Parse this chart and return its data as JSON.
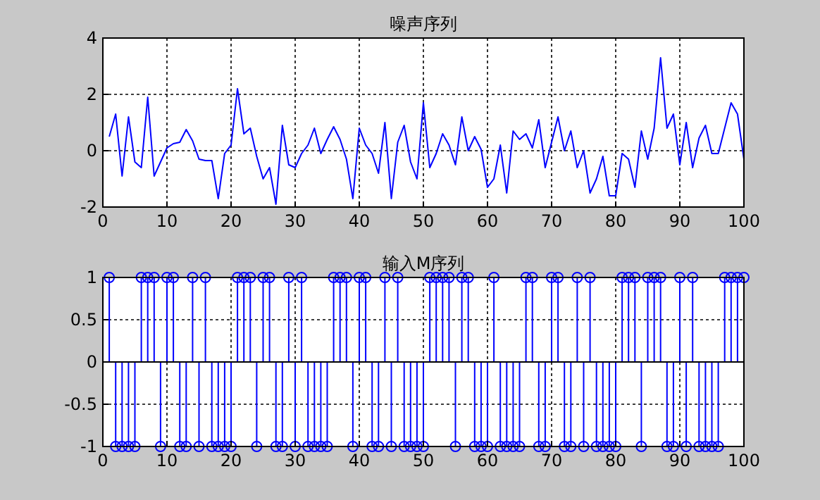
{
  "chart_data": [
    {
      "type": "line",
      "title": "噪声序列",
      "x": [
        1,
        2,
        3,
        4,
        5,
        6,
        7,
        8,
        9,
        10,
        11,
        12,
        13,
        14,
        15,
        16,
        17,
        18,
        19,
        20,
        21,
        22,
        23,
        24,
        25,
        26,
        27,
        28,
        29,
        30,
        31,
        32,
        33,
        34,
        35,
        36,
        37,
        38,
        39,
        40,
        41,
        42,
        43,
        44,
        45,
        46,
        47,
        48,
        49,
        50,
        51,
        52,
        53,
        54,
        55,
        56,
        57,
        58,
        59,
        60,
        61,
        62,
        63,
        64,
        65,
        66,
        67,
        68,
        69,
        70,
        71,
        72,
        73,
        74,
        75,
        76,
        77,
        78,
        79,
        80,
        81,
        82,
        83,
        84,
        85,
        86,
        87,
        88,
        89,
        90,
        91,
        92,
        93,
        94,
        95,
        96,
        97,
        98,
        99,
        100
      ],
      "series": [
        {
          "color": "#0000ff",
          "values": [
            0.5,
            1.3,
            -0.9,
            1.2,
            -0.4,
            -0.6,
            1.9,
            -0.9,
            -0.4,
            0.1,
            0.25,
            0.3,
            0.75,
            0.35,
            -0.3,
            -0.35,
            -0.35,
            -1.7,
            -0.1,
            0.2,
            2.2,
            0.6,
            0.8,
            -0.2,
            -1.0,
            -0.6,
            -1.9,
            0.9,
            -0.5,
            -0.6,
            -0.1,
            0.2,
            0.8,
            -0.1,
            0.4,
            0.85,
            0.4,
            -0.3,
            -1.7,
            0.8,
            0.2,
            -0.1,
            -0.8,
            1.0,
            -1.7,
            0.3,
            0.9,
            -0.4,
            -1.0,
            1.7,
            -0.6,
            -0.1,
            0.6,
            0.2,
            -0.5,
            1.2,
            0,
            0.5,
            0.05,
            -1.3,
            -1.0,
            0.2,
            -1.5,
            0.7,
            0.4,
            0.6,
            0.1,
            1.1,
            -0.6,
            0.3,
            1.2,
            0,
            0.7,
            -0.6,
            0,
            -1.5,
            -1.0,
            -0.2,
            -1.6,
            -1.6,
            -0.1,
            -0.3,
            -1.3,
            0.7,
            -0.3,
            0.8,
            3.3,
            0.8,
            1.3,
            -0.5,
            1.0,
            -0.6,
            0.45,
            0.9,
            -0.1,
            -0.1,
            0.8,
            1.7,
            1.3,
            -0.3
          ]
        }
      ],
      "xlim": [
        0,
        100
      ],
      "xticks": [
        0,
        10,
        20,
        30,
        40,
        50,
        60,
        70,
        80,
        90,
        100
      ],
      "ylim": [
        -2,
        4
      ],
      "yticks": [
        -2,
        0,
        2,
        4
      ],
      "grid": true,
      "marker": "none",
      "line_style": "solid"
    },
    {
      "type": "lollipop",
      "title": "输入M序列",
      "x": [
        1,
        2,
        3,
        4,
        5,
        6,
        7,
        8,
        9,
        10,
        11,
        12,
        13,
        14,
        15,
        16,
        17,
        18,
        19,
        20,
        21,
        22,
        23,
        24,
        25,
        26,
        27,
        28,
        29,
        30,
        31,
        32,
        33,
        34,
        35,
        36,
        37,
        38,
        39,
        40,
        41,
        42,
        43,
        44,
        45,
        46,
        47,
        48,
        49,
        50,
        51,
        52,
        53,
        54,
        55,
        56,
        57,
        58,
        59,
        60,
        61,
        62,
        63,
        64,
        65,
        66,
        67,
        68,
        69,
        70,
        71,
        72,
        73,
        74,
        75,
        76,
        77,
        78,
        79,
        80,
        81,
        82,
        83,
        84,
        85,
        86,
        87,
        88,
        89,
        90,
        91,
        92,
        93,
        94,
        95,
        96,
        97,
        98,
        99,
        100
      ],
      "series": [
        {
          "color": "#0000ff",
          "values": [
            1,
            -1,
            -1,
            -1,
            -1,
            1,
            1,
            1,
            -1,
            1,
            1,
            -1,
            -1,
            1,
            -1,
            1,
            -1,
            -1,
            -1,
            -1,
            1,
            1,
            1,
            -1,
            1,
            1,
            -1,
            -1,
            1,
            -1,
            1,
            -1,
            -1,
            -1,
            -1,
            1,
            1,
            1,
            -1,
            1,
            1,
            -1,
            -1,
            1,
            -1,
            1,
            -1,
            -1,
            -1,
            -1,
            1,
            1,
            1,
            1,
            -1,
            1,
            1,
            -1,
            -1,
            -1,
            1,
            -1,
            -1,
            -1,
            -1,
            1,
            1,
            -1,
            -1,
            1,
            1,
            -1,
            -1,
            1,
            -1,
            1,
            -1,
            -1,
            -1,
            -1,
            1,
            1,
            1,
            -1,
            1,
            1,
            1,
            -1,
            -1,
            1,
            -1,
            1,
            -1,
            -1,
            -1,
            -1,
            1,
            1,
            1,
            1
          ]
        }
      ],
      "xlim": [
        0,
        100
      ],
      "xticks": [
        0,
        10,
        20,
        30,
        40,
        50,
        60,
        70,
        80,
        90,
        100
      ],
      "ylim": [
        -1,
        1
      ],
      "yticks": [
        -1,
        -0.5,
        0,
        0.5,
        1
      ],
      "grid": true,
      "marker": "circle"
    }
  ]
}
